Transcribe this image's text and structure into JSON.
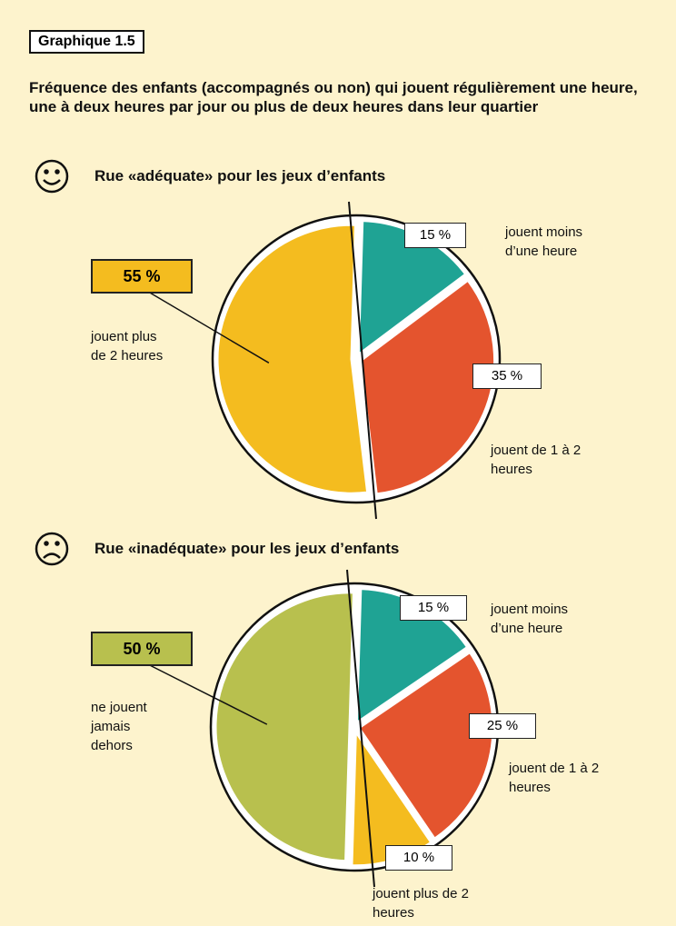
{
  "header": {
    "label": "Graphique 1.5",
    "title": "Fréquence des enfants (accompagnés ou non) qui jouent régulièrement une heure, une à deux heures par jour ou plus de deux heures dans leur quartier"
  },
  "chart_data": [
    {
      "type": "pie",
      "title": "Rue «adéquate» pour les jeux d’enfants",
      "categories": [
        "jouent moins d’une heure",
        "jouent de 1 à 2 heures",
        "jouent plus de 2 heures"
      ],
      "values": [
        15,
        35,
        55
      ],
      "value_labels": [
        "15 %",
        "35 %",
        "55 %"
      ],
      "colors": [
        "#1fa394",
        "#e4542e",
        "#f4bc1f"
      ]
    },
    {
      "type": "pie",
      "title": "Rue «inadéquate» pour les jeux d’enfants",
      "categories": [
        "jouent moins d’une heure",
        "jouent de 1 à 2 heures",
        "jouent plus de 2 heures",
        "ne jouent jamais dehors"
      ],
      "values": [
        15,
        25,
        10,
        50
      ],
      "value_labels": [
        "15 %",
        "25 %",
        "10 %",
        "50 %"
      ],
      "colors": [
        "#1fa394",
        "#e4542e",
        "#f4bc1f",
        "#b8c04e"
      ]
    }
  ]
}
